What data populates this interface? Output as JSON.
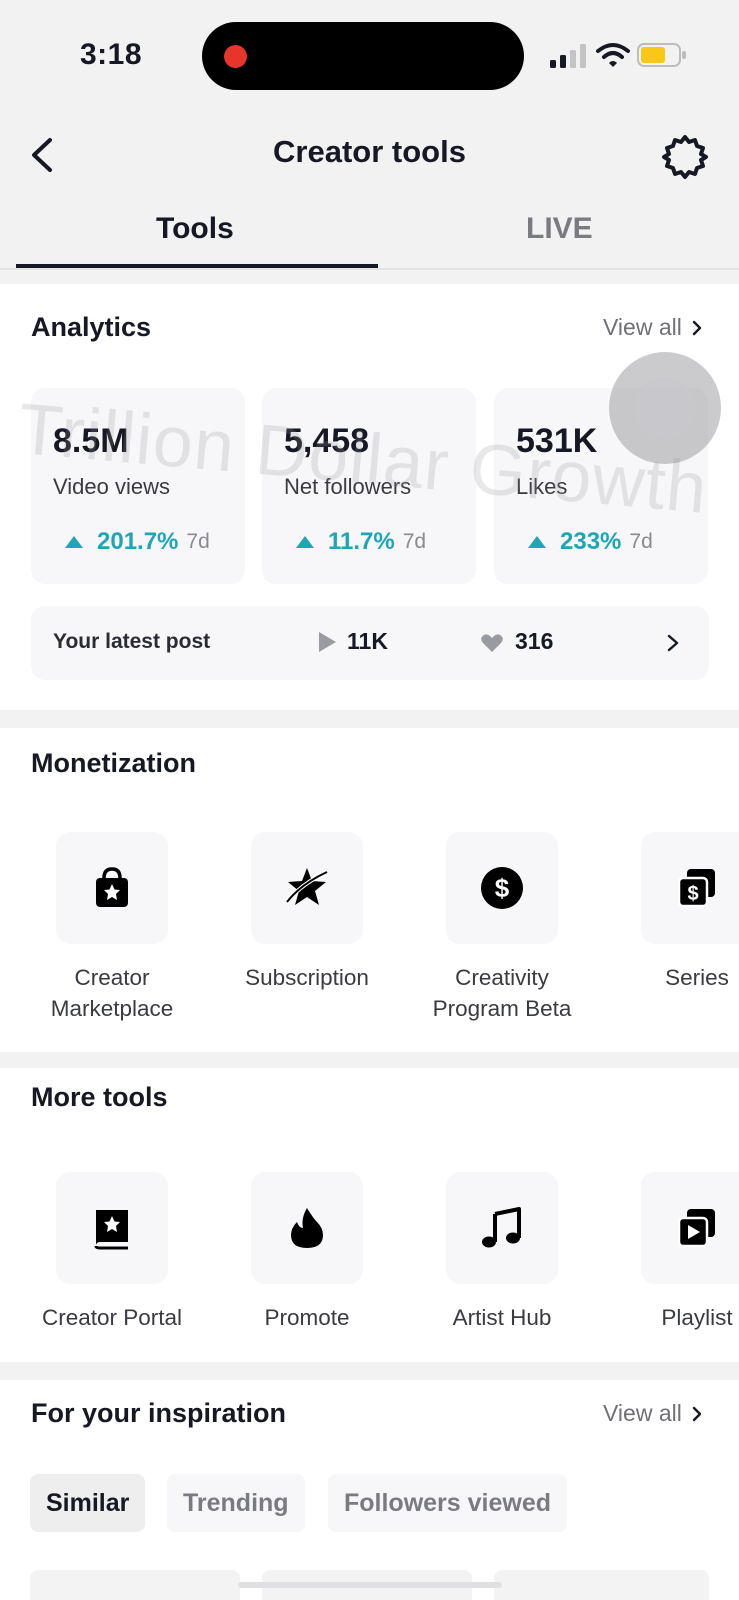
{
  "status_bar": {
    "time": "3:18"
  },
  "header": {
    "title": "Creator tools"
  },
  "tabs": [
    {
      "label": "Tools",
      "selected": true
    },
    {
      "label": "LIVE",
      "selected": false
    }
  ],
  "analytics": {
    "title": "Analytics",
    "view_all": "View all",
    "stats": [
      {
        "value": "8.5M",
        "label": "Video views",
        "change": "201.7%",
        "period": "7d"
      },
      {
        "value": "5,458",
        "label": "Net followers",
        "change": "11.7%",
        "period": "7d"
      },
      {
        "value": "531K",
        "label": "Likes",
        "change": "233%",
        "period": "7d"
      }
    ],
    "latest_post": {
      "label": "Your latest post",
      "views": "11K",
      "likes": "316"
    }
  },
  "monetization": {
    "title": "Monetization",
    "items": [
      {
        "label_line1": "Creator",
        "label_line2": "Marketplace",
        "icon": "shopping-bag-star-icon"
      },
      {
        "label_line1": "Subscription",
        "label_line2": "",
        "icon": "star-orbit-icon"
      },
      {
        "label_line1": "Creativity",
        "label_line2": "Program Beta",
        "icon": "dollar-circle-icon"
      },
      {
        "label_line1": "Series",
        "label_line2": "",
        "icon": "stacked-dollar-icon"
      }
    ]
  },
  "more_tools": {
    "title": "More tools",
    "items": [
      {
        "label": "Creator Portal",
        "icon": "book-star-icon"
      },
      {
        "label": "Promote",
        "icon": "flame-icon"
      },
      {
        "label": "Artist Hub",
        "icon": "music-note-icon"
      },
      {
        "label": "Playlist",
        "icon": "playlist-icon"
      }
    ]
  },
  "inspiration": {
    "title": "For your inspiration",
    "view_all": "View all",
    "chips": [
      {
        "label": "Similar",
        "selected": true
      },
      {
        "label": "Trending",
        "selected": false
      },
      {
        "label": "Followers viewed",
        "selected": false
      }
    ]
  },
  "watermark": {
    "text": "Trillion Dollar Growth"
  },
  "colors": {
    "accent_teal": "#1ea5b6",
    "text_primary": "#161823",
    "recording_red": "#e8352c",
    "battery_yellow": "#f7c916"
  }
}
